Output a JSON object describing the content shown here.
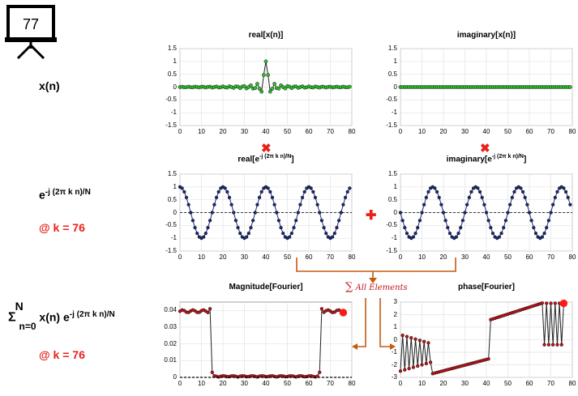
{
  "slide_number": "77",
  "left_labels": {
    "x_n": "x(n)",
    "exp_base": "e",
    "exp_power": "-j (2π k n)/N",
    "k_label_1": "@ k = 76",
    "sum_sigma": "Σ",
    "sum_upper": "N",
    "sum_lower": "n=0",
    "sum_body": "x(n) e",
    "sum_power": "-j (2π k n)/N",
    "k_label_2": "@ k = 76"
  },
  "operators": {
    "multiply": "✖",
    "add": "✚"
  },
  "sum_annotation": {
    "symbol": "∑",
    "text": "All Elements"
  },
  "colors": {
    "accent_red": "#e8231b",
    "arrow_orange": "#c55a11",
    "green_marker": "#2fbf2f",
    "navy": "#1b2a7a",
    "dark_red": "#c0141a"
  },
  "chart_data": [
    {
      "id": "real_x",
      "type": "line",
      "title": "real[x(n)]",
      "xlim": [
        0,
        80
      ],
      "ylim": [
        -1.5,
        1.5
      ],
      "xticks": [
        "0",
        "10",
        "20",
        "30",
        "40",
        "50",
        "60",
        "70",
        "80"
      ],
      "yticks": [
        "1.5",
        "1",
        "0.5",
        "0",
        "-0.5",
        "-1",
        "-1.5"
      ],
      "grid": true,
      "series": [
        {
          "values_formula": "sinc-like pulse centered at n=40, peak 1",
          "n": [
            0,
            79
          ]
        }
      ]
    },
    {
      "id": "imag_x",
      "type": "line",
      "title": "imaginary[x(n)]",
      "xlim": [
        0,
        80
      ],
      "ylim": [
        -1.5,
        1.5
      ],
      "xticks": [
        "0",
        "10",
        "20",
        "30",
        "40",
        "50",
        "60",
        "70",
        "80"
      ],
      "yticks": [
        "1.5",
        "1",
        "0.5",
        "0",
        "-0.5",
        "-1",
        "-1.5"
      ],
      "grid": true,
      "series": [
        {
          "constant": 0,
          "n": [
            0,
            79
          ]
        }
      ]
    },
    {
      "id": "real_exp",
      "type": "line",
      "title": "real[e",
      "title_sup": "-j (2π k n)/N",
      "title_end": "]",
      "xlim": [
        0,
        80
      ],
      "ylim": [
        -1.5,
        1.5
      ],
      "xticks": [
        "0",
        "10",
        "20",
        "30",
        "40",
        "50",
        "60",
        "70",
        "80"
      ],
      "yticks": [
        "1.5",
        "1",
        "0.5",
        "0",
        "-0.5",
        "-1",
        "-1.5"
      ],
      "grid": true,
      "series": [
        {
          "cos_period_samples": 20,
          "n": [
            0,
            79
          ]
        }
      ]
    },
    {
      "id": "imag_exp",
      "type": "line",
      "title": "imaginary[e",
      "title_sup": "-j (2π k n)/N",
      "title_end": "]",
      "xlim": [
        0,
        80
      ],
      "ylim": [
        -1.5,
        1.5
      ],
      "xticks": [
        "0",
        "10",
        "20",
        "30",
        "40",
        "50",
        "60",
        "70",
        "80"
      ],
      "yticks": [
        "1.5",
        "1",
        "0.5",
        "0",
        "-0.5",
        "-1",
        "-1.5"
      ],
      "grid": true,
      "series": [
        {
          "sin_period_samples": 20,
          "n": [
            0,
            79
          ]
        }
      ]
    },
    {
      "id": "magnitude",
      "type": "line",
      "title": "Magnitude[Fourier]",
      "xlim": [
        0,
        80
      ],
      "ylim": [
        0,
        0.045
      ],
      "xticks": [
        "0",
        "10",
        "20",
        "30",
        "40",
        "50",
        "60",
        "70",
        "80"
      ],
      "yticks": [
        "0.04",
        "0.03",
        "0.02",
        "0.01",
        "0"
      ],
      "grid": true,
      "highlight_k": 76
    },
    {
      "id": "phase",
      "type": "line",
      "title": "phase[Fourier]",
      "xlim": [
        0,
        80
      ],
      "ylim": [
        -3,
        3
      ],
      "xticks": [
        "0",
        "10",
        "20",
        "30",
        "40",
        "50",
        "60",
        "70",
        "80"
      ],
      "yticks": [
        "3",
        "2",
        "1",
        "0",
        "-1",
        "-2",
        "-3"
      ],
      "grid": true,
      "highlight_k": 76
    }
  ]
}
